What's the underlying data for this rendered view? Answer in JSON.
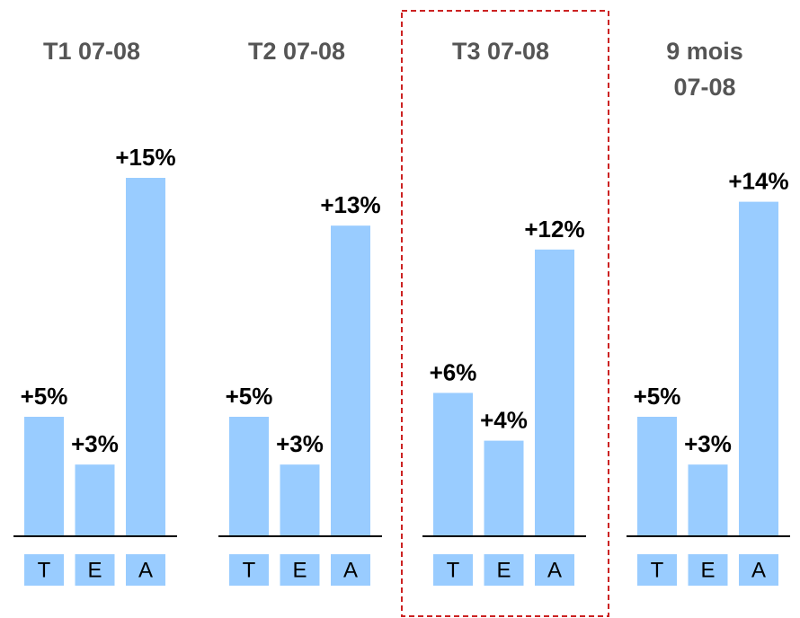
{
  "chart_data": [
    {
      "type": "bar",
      "title": "T1 07-08",
      "categories": [
        "T",
        "E",
        "A"
      ],
      "values": [
        5,
        3,
        15
      ],
      "value_labels": [
        "+5%",
        "+3%",
        "+15%"
      ],
      "color": "#99ccff"
    },
    {
      "type": "bar",
      "title": "T2 07-08",
      "categories": [
        "T",
        "E",
        "A"
      ],
      "values": [
        5,
        3,
        13
      ],
      "value_labels": [
        "+5%",
        "+3%",
        "+13%"
      ],
      "color": "#99ccff"
    },
    {
      "type": "bar",
      "title": "T3 07-08",
      "categories": [
        "T",
        "E",
        "A"
      ],
      "values": [
        6,
        4,
        12
      ],
      "value_labels": [
        "+6%",
        "+4%",
        "+12%"
      ],
      "color": "#99ccff",
      "highlight": true
    },
    {
      "type": "bar",
      "title": "9 mois\n07-08",
      "categories": [
        "T",
        "E",
        "A"
      ],
      "values": [
        5,
        3,
        14
      ],
      "value_labels": [
        "+5%",
        "+3%",
        "+14%"
      ],
      "color": "#99ccff"
    }
  ]
}
